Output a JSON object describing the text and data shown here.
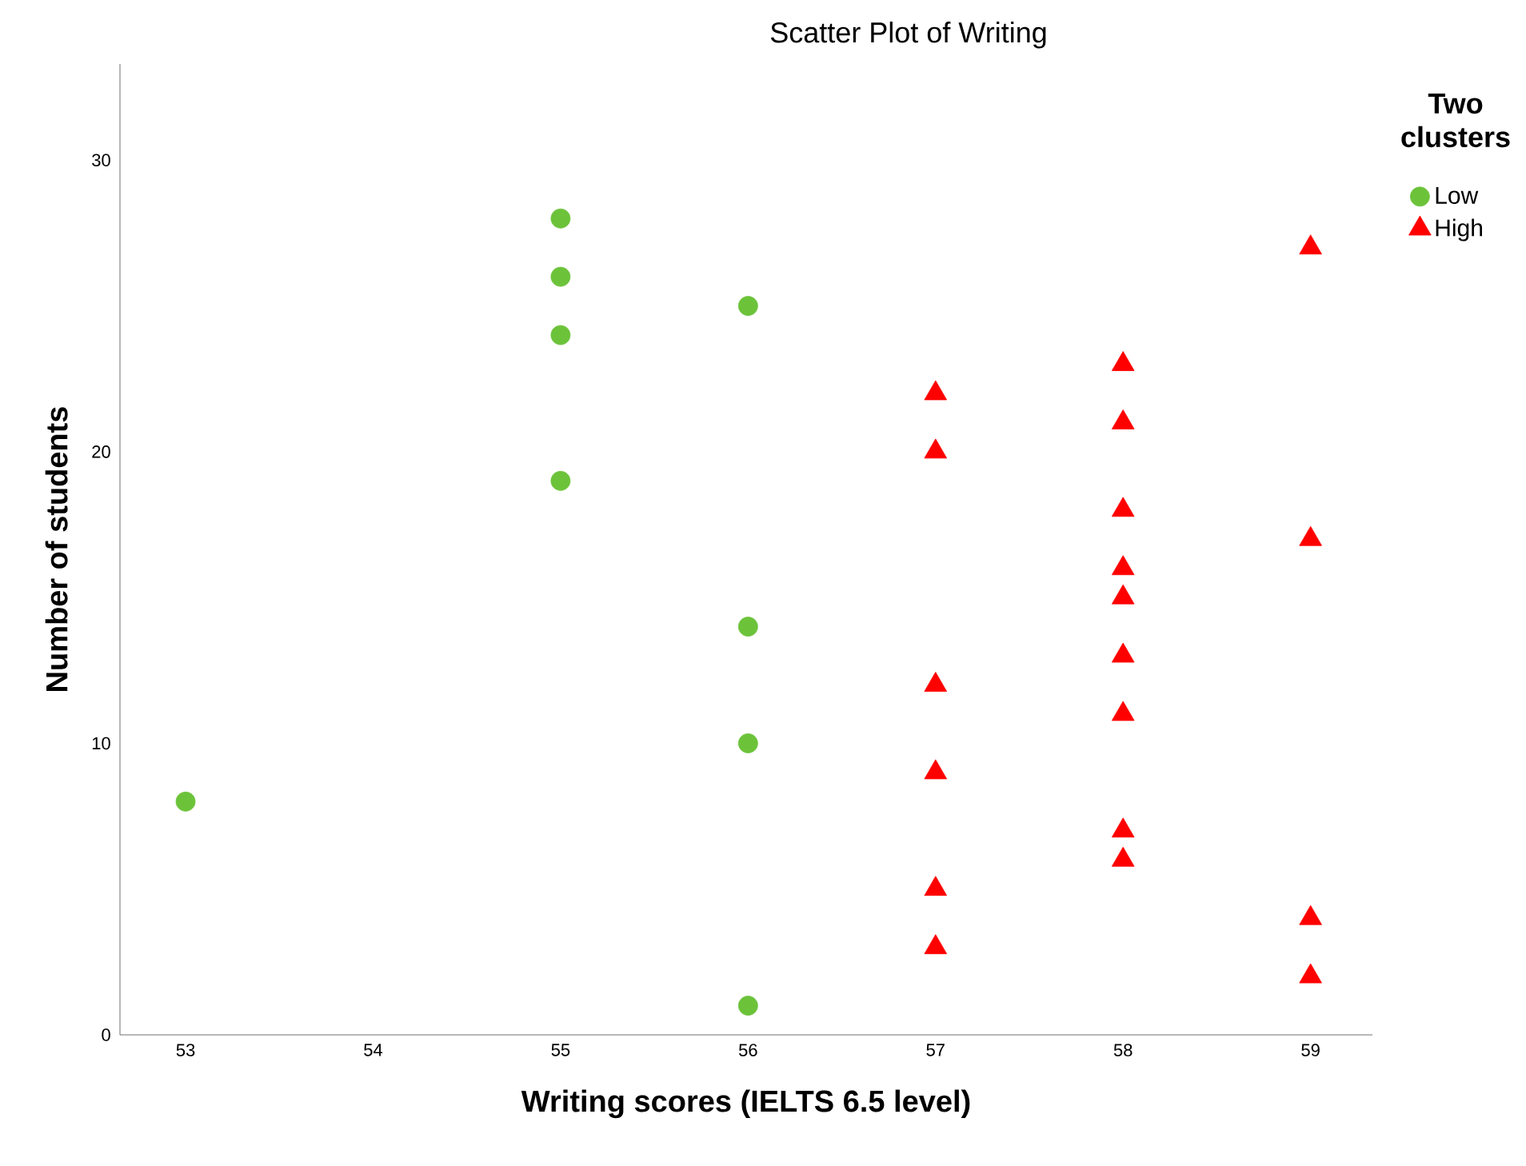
{
  "chart_data": {
    "type": "scatter",
    "title": "Scatter Plot of Writing",
    "xlabel": "Writing scores (IELTS 6.5 level)",
    "ylabel": "Number of students",
    "legend_title": "Two clusters",
    "legend": "top right",
    "grid": false,
    "xlim": [
      52.65,
      59.33
    ],
    "ylim": [
      0,
      33.3
    ],
    "xticks": [
      53,
      54,
      55,
      56,
      57,
      58,
      59
    ],
    "yticks": [
      0,
      10,
      20,
      30
    ],
    "series": [
      {
        "name": "Low",
        "color": "#6cc33a",
        "marker": "circle",
        "x": [
          53,
          55,
          55,
          55,
          55,
          56,
          56,
          56,
          56
        ],
        "values": [
          8,
          28,
          26,
          24,
          19,
          25,
          14,
          10,
          1
        ]
      },
      {
        "name": "High",
        "color": "#ff0000",
        "marker": "triangle",
        "x": [
          57,
          57,
          57,
          57,
          57,
          57,
          58,
          58,
          58,
          58,
          58,
          58,
          58,
          58,
          58,
          59,
          59,
          59,
          59
        ],
        "values": [
          22,
          20,
          12,
          9,
          5,
          3,
          23,
          21,
          18,
          16,
          15,
          13,
          11,
          7,
          6,
          27,
          17,
          4,
          2
        ]
      }
    ]
  }
}
